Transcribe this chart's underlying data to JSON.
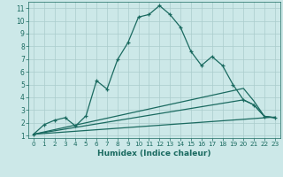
{
  "xlabel": "Humidex (Indice chaleur)",
  "background_color": "#cce8e8",
  "grid_color": "#aacccc",
  "line_color": "#1a6a60",
  "xlim": [
    -0.5,
    23.5
  ],
  "ylim": [
    0.8,
    11.5
  ],
  "xticks": [
    0,
    1,
    2,
    3,
    4,
    5,
    6,
    7,
    8,
    9,
    10,
    11,
    12,
    13,
    14,
    15,
    16,
    17,
    18,
    19,
    20,
    21,
    22,
    23
  ],
  "yticks": [
    1,
    2,
    3,
    4,
    5,
    6,
    7,
    8,
    9,
    10,
    11
  ],
  "line1_x": [
    0,
    1,
    2,
    3,
    4,
    5,
    6,
    7,
    8,
    9,
    10,
    11,
    12,
    13,
    14,
    15,
    16,
    17,
    18,
    19,
    20,
    21,
    22,
    23
  ],
  "line1_y": [
    1.1,
    1.85,
    2.2,
    2.4,
    1.75,
    2.55,
    5.3,
    4.65,
    6.95,
    8.3,
    10.3,
    10.5,
    11.2,
    10.5,
    9.5,
    7.6,
    6.5,
    7.2,
    6.5,
    5.0,
    3.8,
    3.4,
    2.5,
    2.4
  ],
  "line2_x": [
    0,
    23
  ],
  "line2_y": [
    1.1,
    2.45
  ],
  "line3_x": [
    0,
    20,
    21,
    22,
    23
  ],
  "line3_y": [
    1.1,
    4.7,
    3.7,
    2.5,
    2.4
  ],
  "line4_x": [
    0,
    20,
    21,
    22,
    23
  ],
  "line4_y": [
    1.1,
    3.8,
    3.4,
    2.5,
    2.4
  ]
}
